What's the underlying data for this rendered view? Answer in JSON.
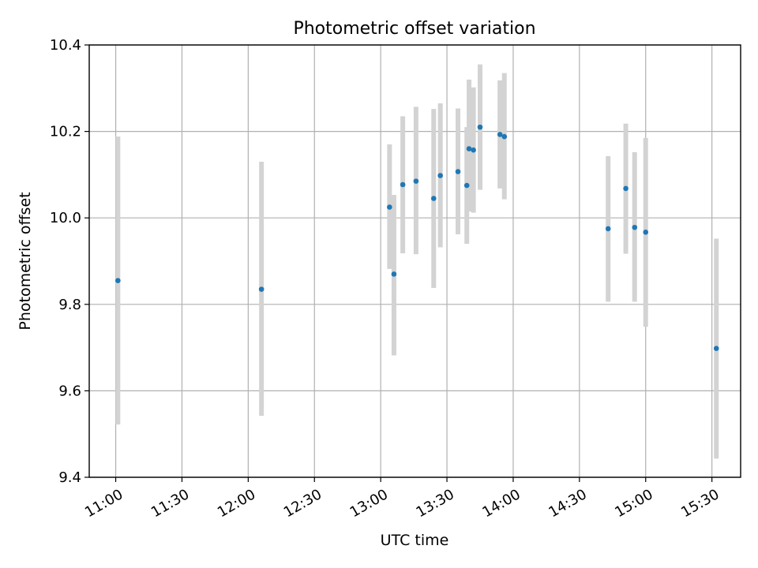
{
  "chart_data": {
    "type": "scatter",
    "title": "Photometric offset variation",
    "xlabel": "UTC time",
    "ylabel": "Photometric offset",
    "xlim": [
      "10:48",
      "15:43"
    ],
    "ylim": [
      9.4,
      10.4
    ],
    "x_ticks": [
      "11:00",
      "11:30",
      "12:00",
      "12:30",
      "13:00",
      "13:30",
      "14:00",
      "14:30",
      "15:00",
      "15:30"
    ],
    "y_ticks": [
      "9.4",
      "9.6",
      "9.8",
      "10.0",
      "10.2",
      "10.4"
    ],
    "grid": true,
    "colors": {
      "point": "#1f77b4",
      "error_bar": "#d3d3d3",
      "grid": "#b0b0b0"
    },
    "series": [
      {
        "x": [
          "11:01",
          "12:06",
          "13:04",
          "13:06",
          "13:10",
          "13:16",
          "13:24",
          "13:27",
          "13:35",
          "13:39",
          "13:40",
          "13:42",
          "13:45",
          "13:54",
          "13:56",
          "14:43",
          "14:51",
          "14:55",
          "15:00",
          "15:32"
        ],
        "y": [
          9.855,
          9.835,
          10.025,
          9.87,
          10.077,
          10.085,
          10.045,
          10.098,
          10.107,
          10.075,
          10.16,
          10.157,
          10.21,
          10.193,
          10.188,
          9.975,
          10.068,
          9.978,
          9.967,
          9.698
        ],
        "y_low": [
          9.522,
          9.542,
          9.882,
          9.682,
          9.918,
          9.916,
          9.838,
          9.932,
          9.962,
          9.94,
          10.015,
          10.012,
          10.065,
          10.068,
          10.043,
          9.806,
          9.917,
          9.806,
          9.748,
          9.443
        ],
        "y_high": [
          10.188,
          10.13,
          10.17,
          10.053,
          10.235,
          10.257,
          10.252,
          10.265,
          10.253,
          10.21,
          10.32,
          10.302,
          10.355,
          10.318,
          10.335,
          10.143,
          10.218,
          10.152,
          10.185,
          9.952
        ]
      }
    ]
  }
}
